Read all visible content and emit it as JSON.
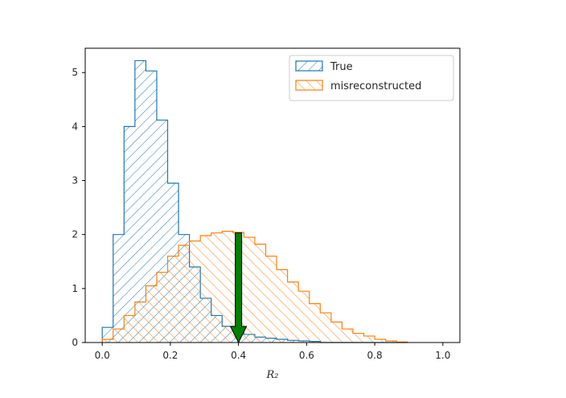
{
  "chart_data": {
    "type": "histogram",
    "xlabel": "R₂",
    "ylabel": "",
    "xlim": [
      -0.05,
      1.05
    ],
    "ylim": [
      0,
      5.45
    ],
    "xticks": [
      "0.0",
      "0.2",
      "0.4",
      "0.6",
      "0.8",
      "1.0"
    ],
    "yticks": [
      "0",
      "1",
      "2",
      "3",
      "4",
      "5"
    ],
    "grid": false,
    "legend_position": "top-right",
    "bin_edges": [
      0.0,
      0.032,
      0.064,
      0.096,
      0.128,
      0.16,
      0.192,
      0.224,
      0.256,
      0.288,
      0.32,
      0.352,
      0.384,
      0.416,
      0.448,
      0.48,
      0.512,
      0.544,
      0.576,
      0.608,
      0.64,
      0.672,
      0.704,
      0.736,
      0.768,
      0.8,
      0.832,
      0.864,
      0.896
    ],
    "series": [
      {
        "name": "True",
        "color": "#1f77b4",
        "hatch": "forward",
        "values": [
          0.28,
          2.0,
          4.0,
          5.22,
          5.03,
          4.12,
          2.95,
          2.0,
          1.4,
          0.82,
          0.5,
          0.3,
          0.22,
          0.15,
          0.1,
          0.08,
          0.06,
          0.04,
          0.03,
          0.02,
          0.0,
          0.0,
          0.0,
          0.0,
          0.0,
          0.0,
          0.0,
          0.0
        ]
      },
      {
        "name": "misreconstructed",
        "color": "#ff7f0e",
        "hatch": "backward",
        "values": [
          0.06,
          0.25,
          0.5,
          0.75,
          1.05,
          1.3,
          1.6,
          1.8,
          1.88,
          1.98,
          2.03,
          2.06,
          2.04,
          1.95,
          1.82,
          1.6,
          1.35,
          1.12,
          0.95,
          0.72,
          0.55,
          0.38,
          0.25,
          0.17,
          0.12,
          0.06,
          0.03,
          0.01
        ]
      }
    ],
    "annotations": [
      {
        "type": "arrow",
        "color": "#008000",
        "x": 0.4,
        "y_start": 2.03,
        "y_end": 0.0
      }
    ]
  }
}
